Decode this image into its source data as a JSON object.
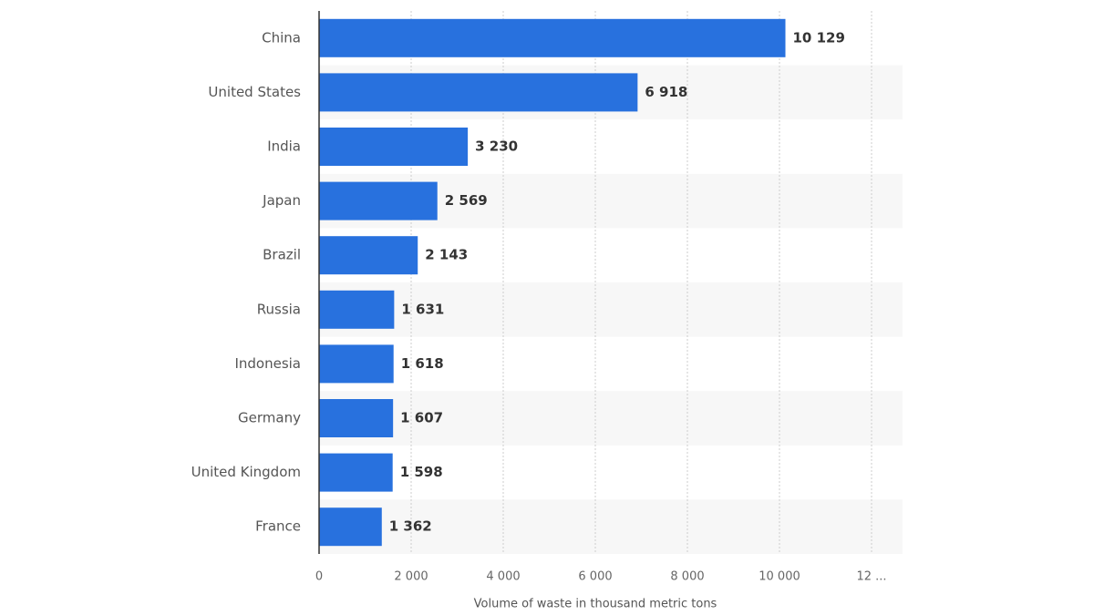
{
  "chart_data": {
    "type": "hbar",
    "x_label": "Volume of waste in thousand metric tons",
    "categories": [
      "China",
      "United States",
      "India",
      "Japan",
      "Brazil",
      "Russia",
      "Indonesia",
      "Germany",
      "United Kingdom",
      "France"
    ],
    "values": [
      10129,
      6918,
      3230,
      2569,
      2143,
      1631,
      1618,
      1607,
      1598,
      1362
    ],
    "value_labels": [
      "10 129",
      "6 918",
      "3 230",
      "2 569",
      "2 143",
      "1 631",
      "1 618",
      "1 607",
      "1 598",
      "1 362"
    ],
    "color": "#2871de",
    "xlim": [
      0,
      12000
    ],
    "xticks": [
      0,
      {
        "value": 2000,
        "label": "2 000"
      },
      {
        "value": 4000,
        "label": "4 000"
      },
      {
        "value": 6000,
        "label": "6 000"
      },
      {
        "value": 8000,
        "label": "8 000"
      },
      {
        "value": 10000,
        "label": "10 000"
      },
      {
        "value": 12000,
        "label": "12 ..."
      }
    ],
    "grid": true
  }
}
